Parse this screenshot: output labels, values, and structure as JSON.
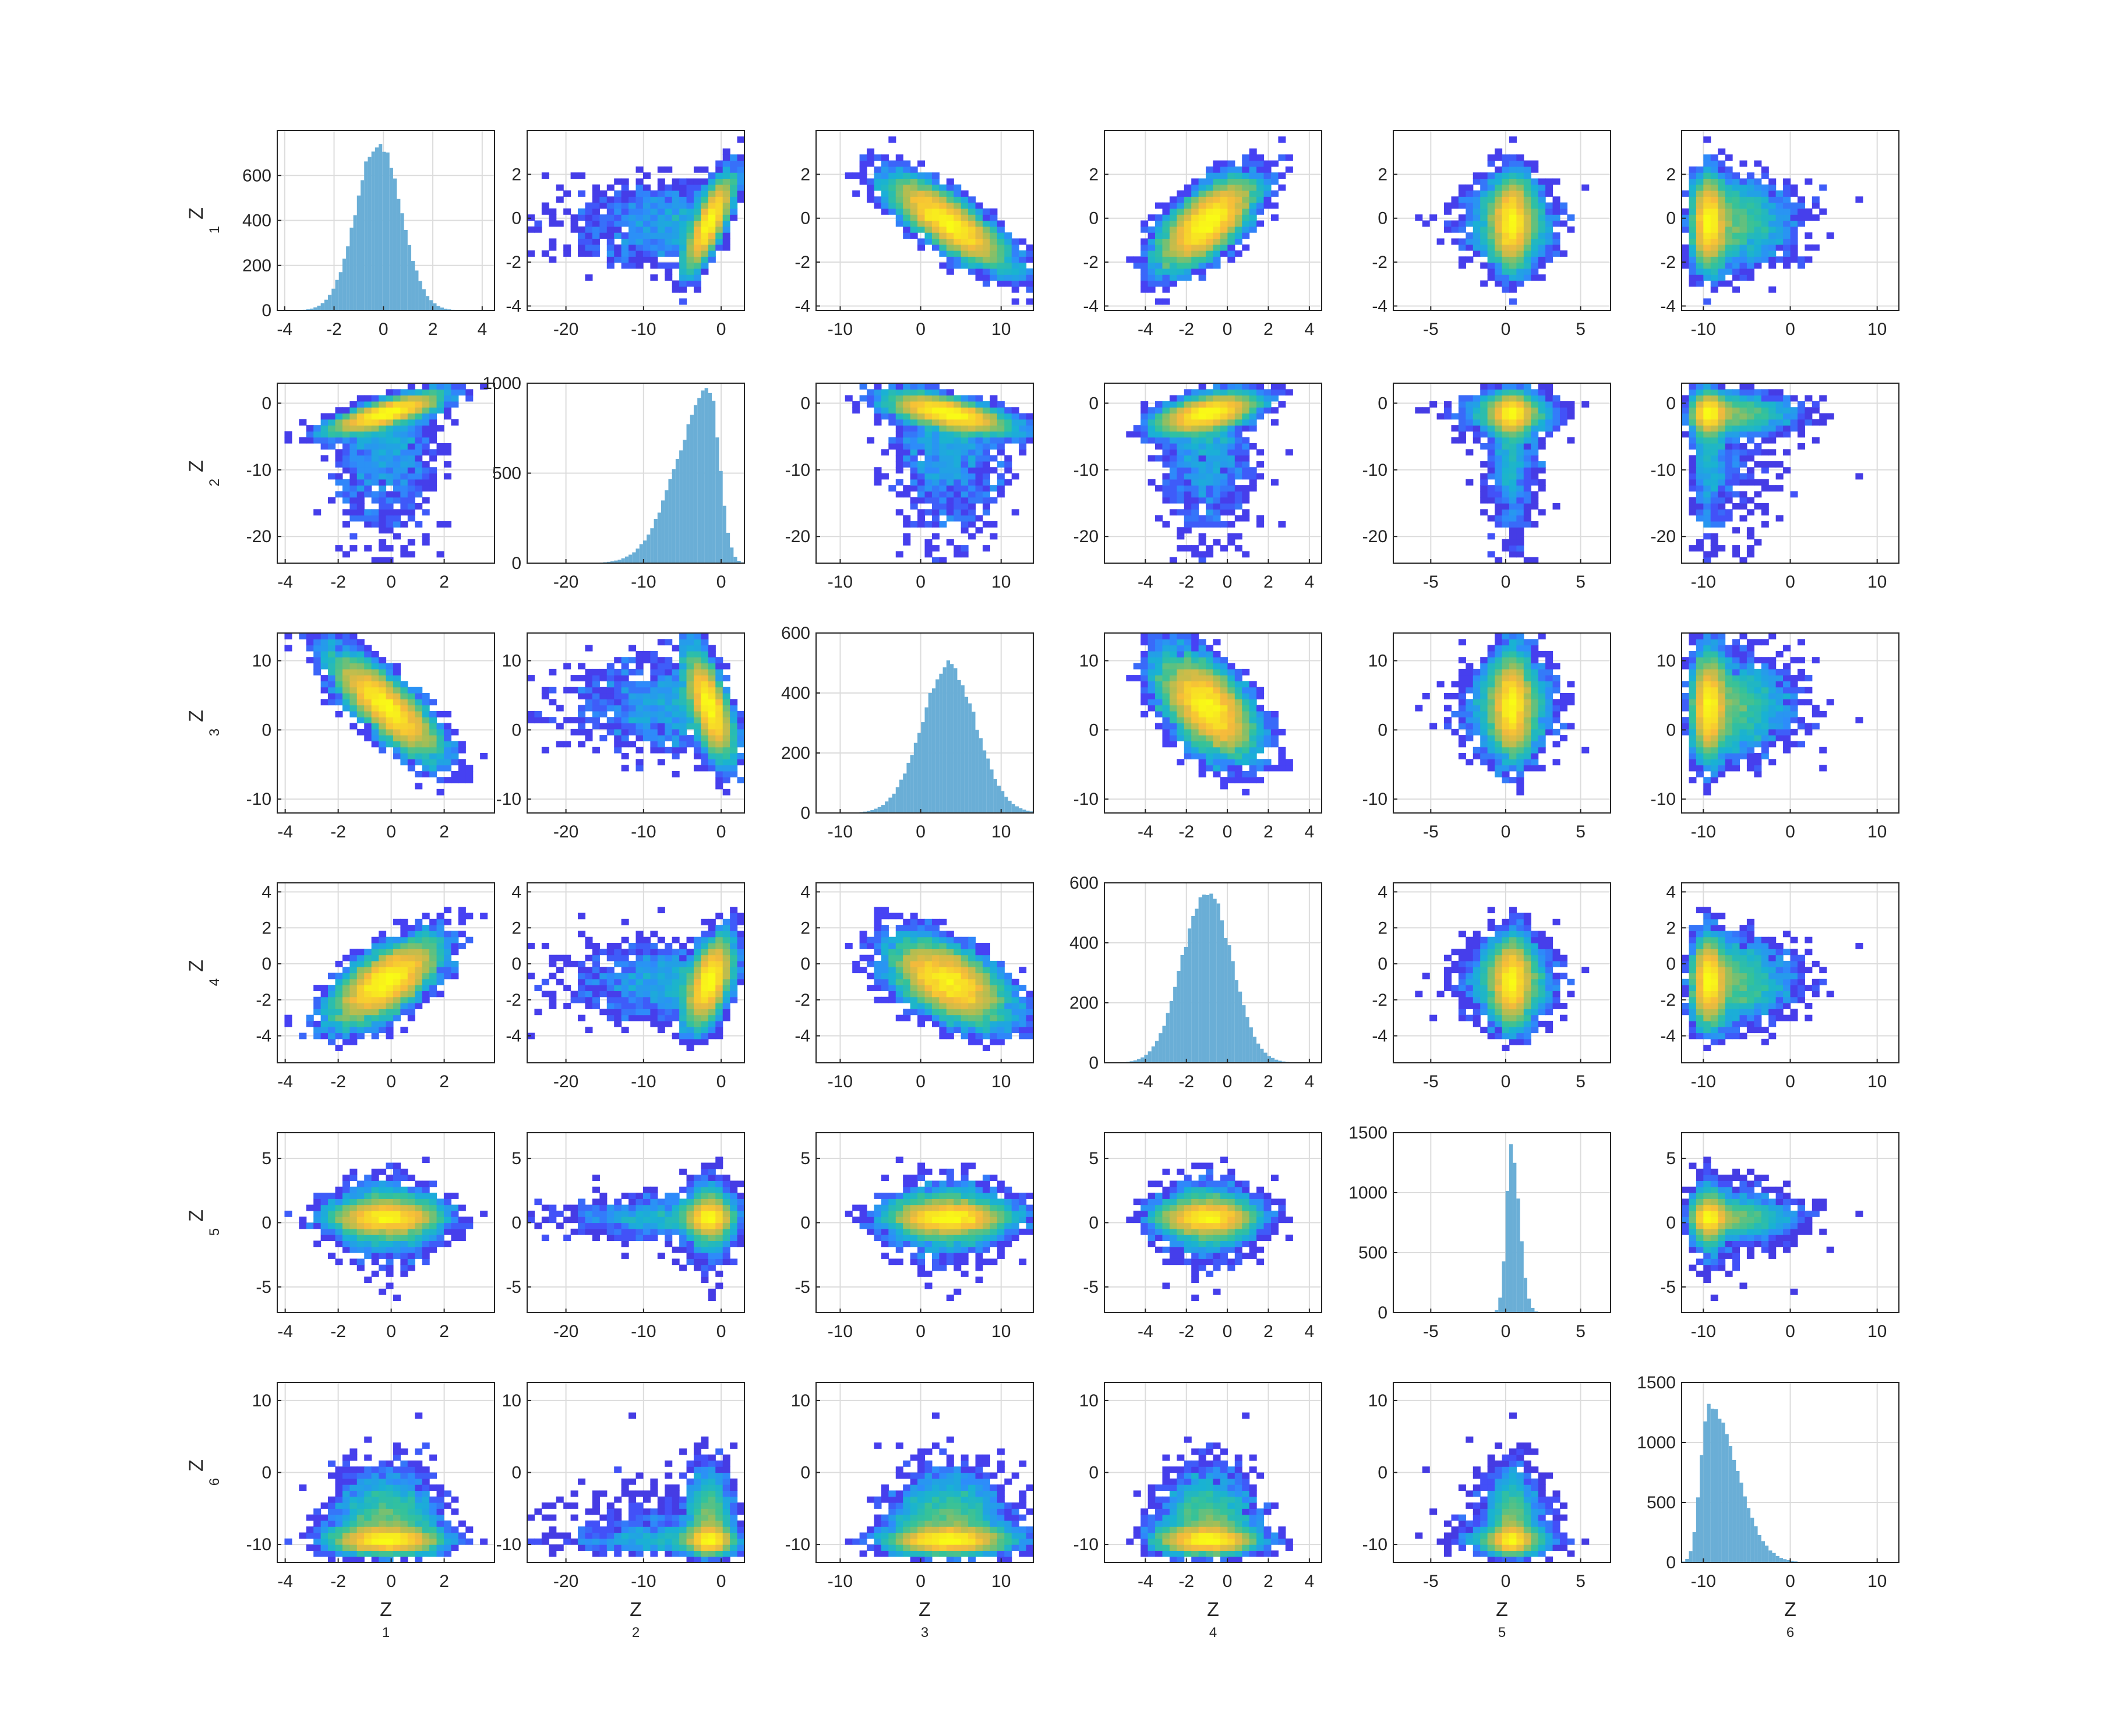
{
  "figure": {
    "type": "scatterplot-matrix",
    "variables": 6
  },
  "colors": {
    "histogram_fill": "#6aaed6",
    "axes_stroke": "#262626",
    "grid": "#dcdcdc",
    "colormap": [
      "#3e26a8",
      "#4743f8",
      "#2d8dfa",
      "#19b2d3",
      "#34c29a",
      "#a4be56",
      "#f6ba3b",
      "#f9fb15"
    ]
  },
  "axis_labels": {
    "x": [
      {
        "main": "Z",
        "sub": "1"
      },
      {
        "main": "Z",
        "sub": "2"
      },
      {
        "main": "Z",
        "sub": "3"
      },
      {
        "main": "Z",
        "sub": "4"
      },
      {
        "main": "Z",
        "sub": "5"
      },
      {
        "main": "Z",
        "sub": "6"
      }
    ],
    "y": [
      {
        "main": "Z",
        "sub": "1"
      },
      {
        "main": "Z",
        "sub": "2"
      },
      {
        "main": "Z",
        "sub": "3"
      },
      {
        "main": "Z",
        "sub": "4"
      },
      {
        "main": "Z",
        "sub": "5"
      },
      {
        "main": "Z",
        "sub": "6"
      }
    ]
  },
  "chart_data": {
    "type": "heatmap",
    "description_type": "pairwise 2D histograms with 1D histograms on the diagonal",
    "grid_on": true,
    "variables": [
      {
        "name": "Z1",
        "range": [
          -4.3,
          4.5
        ],
        "ticks": [
          -4,
          -2,
          0,
          2,
          4
        ],
        "pair_range": [
          -4.3,
          3.9
        ],
        "pair_ticks": [
          -4,
          -2,
          0,
          2
        ]
      },
      {
        "name": "Z2",
        "range": [
          -25,
          3
        ],
        "ticks": [
          -20,
          -10,
          0
        ],
        "yticks": [
          -20,
          -10,
          0
        ],
        "z1_row_ticks": [
          -4,
          -2,
          0,
          2
        ]
      },
      {
        "name": "Z3",
        "range": [
          -13,
          14
        ],
        "ticks": [
          -10,
          0,
          10
        ]
      },
      {
        "name": "Z4",
        "range": [
          -6,
          4.6
        ],
        "ticks": [
          -4,
          -2,
          0,
          2,
          4
        ]
      },
      {
        "name": "Z5",
        "range": [
          -7.5,
          7.0
        ],
        "ticks": [
          -5,
          0,
          5
        ]
      },
      {
        "name": "Z6",
        "range": [
          -12.5,
          12.5
        ],
        "ticks": [
          -10,
          0,
          10
        ]
      }
    ],
    "row_y_ranges": [
      {
        "range": [
          -4.2,
          4.0
        ],
        "ticks": [
          -4,
          -2,
          0,
          2
        ]
      },
      {
        "range": [
          -24,
          3
        ],
        "ticks": [
          -20,
          -10,
          0
        ]
      },
      {
        "range": [
          -12,
          14
        ],
        "ticks": [
          -10,
          0,
          10
        ]
      },
      {
        "range": [
          -5.5,
          4.5
        ],
        "ticks": [
          -4,
          -2,
          0,
          2,
          4
        ]
      },
      {
        "range": [
          -7,
          7
        ],
        "ticks": [
          -5,
          0,
          5
        ]
      },
      {
        "range": [
          -12.5,
          12.5
        ],
        "ticks": [
          -10,
          0,
          10
        ]
      }
    ],
    "diagonal_histograms": [
      {
        "variable": "Z1",
        "ylim": [
          0,
          800
        ],
        "yticks": [
          0,
          200,
          400,
          600
        ],
        "peak": 780,
        "center": -0.2,
        "spread": 0.9,
        "skew": 0
      },
      {
        "variable": "Z2",
        "ylim": [
          0,
          1000
        ],
        "yticks": [
          0,
          500,
          1000
        ],
        "peak": 990,
        "center": -1.5,
        "spread": 1.3,
        "skew": -2.2
      },
      {
        "variable": "Z3",
        "ylim": [
          0,
          600
        ],
        "yticks": [
          0,
          200,
          400,
          600
        ],
        "peak": 510,
        "center": 3.5,
        "spread": 3.4,
        "skew": 0
      },
      {
        "variable": "Z4",
        "ylim": [
          0,
          600
        ],
        "yticks": [
          0,
          200,
          400,
          600
        ],
        "peak": 595,
        "center": -1.0,
        "spread": 1.2,
        "skew": 0
      },
      {
        "variable": "Z5",
        "ylim": [
          0,
          1500
        ],
        "yticks": [
          0,
          500,
          1000,
          1500
        ],
        "peak": 1430,
        "center": 0.4,
        "spread": 0.35,
        "skew": 0.5
      },
      {
        "variable": "Z6",
        "ylim": [
          0,
          1500
        ],
        "yticks": [
          0,
          500,
          1000,
          1500
        ],
        "peak": 1370,
        "center": -9.4,
        "spread": 0.9,
        "skew": 2.5
      }
    ]
  }
}
